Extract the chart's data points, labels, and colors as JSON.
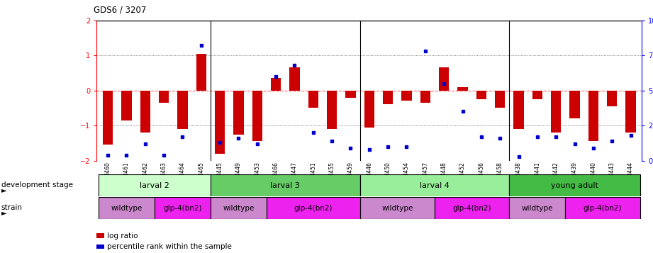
{
  "title": "GDS6 / 3207",
  "samples": [
    "GSM460",
    "GSM461",
    "GSM462",
    "GSM463",
    "GSM464",
    "GSM465",
    "GSM445",
    "GSM449",
    "GSM453",
    "GSM466",
    "GSM447",
    "GSM451",
    "GSM455",
    "GSM459",
    "GSM446",
    "GSM450",
    "GSM454",
    "GSM457",
    "GSM448",
    "GSM452",
    "GSM456",
    "GSM458",
    "GSM438",
    "GSM441",
    "GSM442",
    "GSM439",
    "GSM440",
    "GSM443",
    "GSM444"
  ],
  "log_ratio": [
    -1.55,
    -0.85,
    -1.2,
    -0.35,
    -1.1,
    1.05,
    -1.8,
    -1.25,
    -1.45,
    0.35,
    0.65,
    -0.5,
    -1.1,
    -0.2,
    -1.05,
    -0.4,
    -0.3,
    -0.35,
    0.65,
    0.1,
    -0.25,
    -0.5,
    -1.1,
    -0.25,
    -1.2,
    -0.8,
    -1.45,
    -0.45,
    -1.2
  ],
  "percentile": [
    4,
    4,
    12,
    4,
    17,
    82,
    13,
    16,
    12,
    60,
    68,
    20,
    14,
    9,
    8,
    10,
    10,
    78,
    55,
    35,
    17,
    16,
    3,
    17,
    17,
    12,
    9,
    14,
    18
  ],
  "dev_stage_groups": [
    {
      "label": "larval 2",
      "start": 0,
      "end": 6,
      "color": "#ccffcc"
    },
    {
      "label": "larval 3",
      "start": 6,
      "end": 14,
      "color": "#66cc66"
    },
    {
      "label": "larval 4",
      "start": 14,
      "end": 22,
      "color": "#99ee99"
    },
    {
      "label": "young adult",
      "start": 22,
      "end": 29,
      "color": "#44bb44"
    }
  ],
  "strain_groups": [
    {
      "label": "wildtype",
      "start": 0,
      "end": 3,
      "color": "#cc88cc"
    },
    {
      "label": "glp-4(bn2)",
      "start": 3,
      "end": 6,
      "color": "#ee22ee"
    },
    {
      "label": "wildtype",
      "start": 6,
      "end": 9,
      "color": "#cc88cc"
    },
    {
      "label": "glp-4(bn2)",
      "start": 9,
      "end": 14,
      "color": "#ee22ee"
    },
    {
      "label": "wildtype",
      "start": 14,
      "end": 18,
      "color": "#cc88cc"
    },
    {
      "label": "glp-4(bn2)",
      "start": 18,
      "end": 22,
      "color": "#ee22ee"
    },
    {
      "label": "wildtype",
      "start": 22,
      "end": 25,
      "color": "#cc88cc"
    },
    {
      "label": "glp-4(bn2)",
      "start": 25,
      "end": 29,
      "color": "#ee22ee"
    }
  ],
  "ylim": [
    -2,
    2
  ],
  "bar_color": "#cc0000",
  "dot_color": "#0000cc",
  "zero_line_color": "#ff6666",
  "axis_bg_color": "#ffffff",
  "group_boundaries": [
    6,
    14,
    22
  ],
  "dotted_lines": [
    -1.0,
    1.0
  ]
}
